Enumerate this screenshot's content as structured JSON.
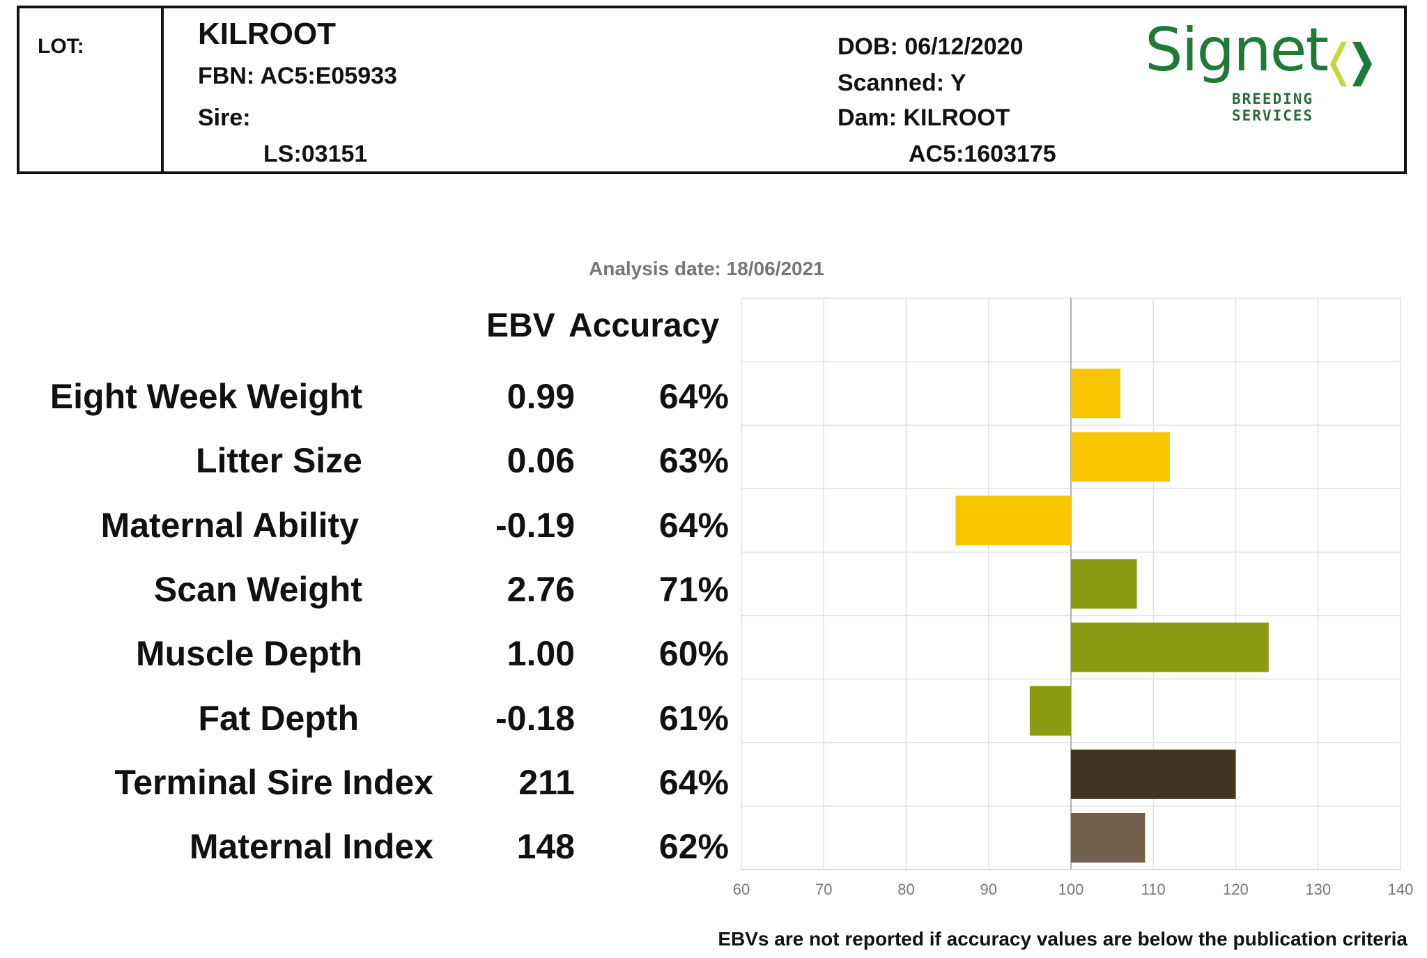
{
  "header": {
    "lot_label": "LOT:",
    "name": "KILROOT",
    "fbn": "FBN: AC5:E05933",
    "sire_label": "Sire:",
    "sire_id": "LS:03151",
    "dob": "DOB: 06/12/2020",
    "scanned": "Scanned: Y",
    "dam": "Dam: KILROOT",
    "dam_id": "AC5:1603175"
  },
  "logo": {
    "word": "Signet",
    "subtitle": "BREEDING SERVICES",
    "colors": {
      "text": "#1e7a36",
      "arrow_light": "#c6d63a",
      "arrow_dark": "#1e7a36"
    }
  },
  "analysis_date": "Analysis date: 18/06/2021",
  "table": {
    "ebv_header": "EBV",
    "accuracy_header": "Accuracy",
    "rows": [
      {
        "trait": "Eight Week Weight",
        "ebv": "0.99",
        "accuracy": "64%"
      },
      {
        "trait": "Litter Size",
        "ebv": "0.06",
        "accuracy": "63%"
      },
      {
        "trait": "Maternal Ability",
        "ebv": "-0.19",
        "accuracy": "64%"
      },
      {
        "trait": "Scan Weight",
        "ebv": "2.76",
        "accuracy": "71%"
      },
      {
        "trait": "Muscle Depth",
        "ebv": "1.00",
        "accuracy": "60%"
      },
      {
        "trait": "Fat Depth",
        "ebv": "-0.18",
        "accuracy": "61%"
      },
      {
        "trait": "Terminal Sire Index",
        "ebv": "211",
        "accuracy": "64%"
      },
      {
        "trait": "Maternal Index",
        "ebv": "148",
        "accuracy": "62%"
      }
    ]
  },
  "chart_data": {
    "type": "bar",
    "orientation": "horizontal",
    "baseline": 100,
    "xlim": [
      60,
      140
    ],
    "xticks": [
      "60",
      "70",
      "80",
      "90",
      "100",
      "110",
      "120",
      "130",
      "140"
    ],
    "grid": true,
    "categories": [
      "Eight Week Weight",
      "Litter Size",
      "Maternal Ability",
      "Scan Weight",
      "Muscle Depth",
      "Fat Depth",
      "Terminal Sire Index",
      "Maternal Index"
    ],
    "values": [
      106,
      112,
      86,
      108,
      124,
      95,
      120,
      109
    ],
    "colors": [
      "#f7c600",
      "#f7c600",
      "#f7c600",
      "#8a9c12",
      "#8a9c12",
      "#8a9c12",
      "#443321",
      "#72604c"
    ]
  },
  "footnote": "EBVs are not reported if accuracy values are below the publication criteria"
}
